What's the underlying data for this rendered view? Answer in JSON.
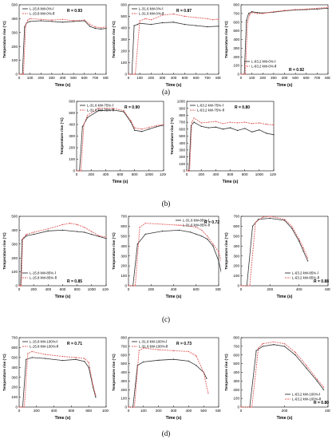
{
  "figure": {
    "rows": [
      {
        "label": "(a)"
      },
      {
        "label": "(b)"
      },
      {
        "label": "(c)"
      },
      {
        "label": "(d)"
      }
    ]
  },
  "chart_data": [
    {
      "type": "line",
      "xlabel": "Time (s)",
      "ylabel": "Temperature rise (°C)",
      "xlim": [
        0,
        800
      ],
      "ylim": [
        0,
        500
      ],
      "xticks": [
        0,
        100,
        200,
        300,
        400,
        500,
        600,
        700,
        800
      ],
      "yticks": [
        0,
        100,
        200,
        300,
        400,
        500
      ],
      "legend_position": "top-left",
      "r_label": "R = 0.93",
      "series": [
        {
          "name": "L-15.8 kW-0%-Ⅰ",
          "color": "#333333",
          "style": "solid",
          "x": [
            0,
            30,
            50,
            70,
            100,
            200,
            300,
            400,
            500,
            600,
            650,
            700,
            750,
            800
          ],
          "y": [
            0,
            0,
            340,
            370,
            380,
            385,
            380,
            375,
            380,
            385,
            345,
            330,
            325,
            330
          ]
        },
        {
          "name": "L-15.8 kW-0%-Ⅱ",
          "color": "#e06060",
          "style": "dashed",
          "x": [
            0,
            40,
            60,
            80,
            100,
            200,
            300,
            400,
            500,
            600,
            650,
            700,
            750,
            800
          ],
          "y": [
            0,
            0,
            350,
            390,
            400,
            395,
            390,
            395,
            385,
            390,
            360,
            340,
            335,
            340
          ]
        }
      ]
    },
    {
      "type": "line",
      "xlabel": "Time (s)",
      "ylabel": "Temperature rise (°C)",
      "xlim": [
        0,
        800
      ],
      "ylim": [
        0,
        600
      ],
      "xticks": [
        0,
        100,
        200,
        300,
        400,
        500,
        600,
        700,
        800
      ],
      "yticks": [
        0,
        100,
        200,
        300,
        400,
        500,
        600
      ],
      "legend_position": "top-left",
      "r_label": "R = 0.87",
      "series": [
        {
          "name": "L-31.6 kW-0%-Ⅰ",
          "color": "#333333",
          "style": "solid",
          "x": [
            0,
            30,
            50,
            80,
            100,
            200,
            300,
            400,
            500,
            600,
            700,
            800
          ],
          "y": [
            0,
            0,
            420,
            430,
            440,
            430,
            445,
            450,
            430,
            420,
            410,
            415
          ]
        },
        {
          "name": "L-31.6 kW-0%-Ⅱ",
          "color": "#e06060",
          "style": "dashed",
          "x": [
            0,
            60,
            100,
            150,
            200,
            300,
            400,
            500,
            600,
            700,
            750,
            800
          ],
          "y": [
            0,
            0,
            460,
            480,
            470,
            510,
            520,
            500,
            490,
            480,
            470,
            475
          ]
        }
      ]
    },
    {
      "type": "line",
      "xlabel": "Time (s)",
      "ylabel": "Temperature rise (°C)",
      "xlim": [
        0,
        800
      ],
      "ylim": [
        0,
        800
      ],
      "xticks": [
        0,
        100,
        200,
        300,
        400,
        500,
        600,
        700,
        800
      ],
      "yticks": [
        0,
        100,
        200,
        300,
        400,
        500,
        600,
        700,
        800
      ],
      "legend_position": "bottom-left",
      "r_label": "R = 0.92",
      "series": [
        {
          "name": "L-63.2 kW-0%-Ⅰ",
          "color": "#333333",
          "style": "solid",
          "x": [
            0,
            30,
            50,
            70,
            100,
            150,
            200,
            300,
            400,
            500,
            600,
            700,
            800
          ],
          "y": [
            0,
            0,
            620,
            700,
            720,
            710,
            705,
            715,
            730,
            740,
            745,
            750,
            760
          ]
        },
        {
          "name": "L-63.2 kW-0%-Ⅱ",
          "color": "#e06060",
          "style": "dashed",
          "x": [
            0,
            40,
            60,
            80,
            100,
            150,
            200,
            300,
            400,
            500,
            600,
            700,
            800
          ],
          "y": [
            0,
            0,
            600,
            690,
            710,
            700,
            700,
            720,
            735,
            745,
            750,
            760,
            770
          ]
        }
      ]
    },
    {
      "type": "line",
      "xlabel": "Time (s)",
      "ylabel": "Temperature rise (°C)",
      "xlim": [
        0,
        1200
      ],
      "ylim": [
        0,
        600
      ],
      "xticks": [
        0,
        200,
        400,
        600,
        800,
        1000,
        1200
      ],
      "yticks": [
        0,
        100,
        200,
        300,
        400,
        500,
        600
      ],
      "legend_position": "top-left",
      "r_label": "R = 0.90",
      "series": [
        {
          "name": "L-31.6 kW-75%-Ⅰ",
          "color": "#333333",
          "style": "solid",
          "x": [
            0,
            40,
            80,
            150,
            300,
            500,
            650,
            750,
            800,
            900,
            1000,
            1100,
            1200
          ],
          "y": [
            0,
            0,
            380,
            460,
            520,
            525,
            510,
            420,
            350,
            340,
            360,
            380,
            395
          ]
        },
        {
          "name": "L-31.6 kW-75%-Ⅱ",
          "color": "#e06060",
          "style": "dashed",
          "x": [
            0,
            60,
            100,
            150,
            300,
            500,
            650,
            750,
            800,
            900,
            1000,
            1100,
            1200
          ],
          "y": [
            0,
            0,
            400,
            480,
            540,
            540,
            520,
            430,
            370,
            360,
            375,
            390,
            400
          ]
        }
      ]
    },
    {
      "type": "line",
      "xlabel": "Time (s)",
      "ylabel": "Temperature rise (°C)",
      "xlim": [
        0,
        1200
      ],
      "ylim": [
        0,
        1000
      ],
      "xticks": [
        0,
        200,
        400,
        600,
        800,
        1000,
        1200
      ],
      "yticks": [
        0,
        100,
        200,
        300,
        400,
        500,
        600,
        700,
        800,
        900,
        1000
      ],
      "legend_position": "top-left",
      "r_label": "R = 0.80",
      "series": [
        {
          "name": "L-63.2 kW-75%-Ⅰ",
          "color": "#333333",
          "style": "solid",
          "x": [
            0,
            30,
            60,
            100,
            200,
            300,
            400,
            500,
            600,
            700,
            800,
            900,
            1000,
            1100,
            1200
          ],
          "y": [
            0,
            0,
            650,
            700,
            640,
            620,
            630,
            600,
            620,
            580,
            610,
            560,
            590,
            540,
            520
          ]
        },
        {
          "name": "L-63.2 kW-75%-Ⅱ",
          "color": "#e06060",
          "style": "dashed",
          "x": [
            0,
            40,
            70,
            100,
            200,
            300,
            400,
            500,
            600,
            700,
            800,
            900,
            1000,
            1100,
            1200
          ],
          "y": [
            0,
            0,
            700,
            760,
            690,
            700,
            710,
            680,
            700,
            690,
            700,
            680,
            690,
            670,
            660
          ]
        }
      ]
    },
    {
      "type": "line",
      "xlabel": "Time (s)",
      "ylabel": "Temperature rise (°C)",
      "xlim": [
        0,
        1200
      ],
      "ylim": [
        0,
        500
      ],
      "xticks": [
        0,
        200,
        400,
        600,
        800,
        1000,
        1200
      ],
      "yticks": [
        0,
        100,
        200,
        300,
        400,
        500
      ],
      "legend_position": "bottom-left",
      "r_label": "R = 0.85",
      "series": [
        {
          "name": "L-15.8 kW-85%-Ⅰ",
          "color": "#333333",
          "style": "solid",
          "x": [
            0,
            20,
            40,
            100,
            200,
            400,
            600,
            800,
            900,
            1000,
            1100,
            1200
          ],
          "y": [
            0,
            0,
            330,
            360,
            370,
            395,
            400,
            390,
            385,
            370,
            355,
            340
          ]
        },
        {
          "name": "L-15.8 kW-85%-Ⅱ",
          "color": "#e06060",
          "style": "dashed",
          "x": [
            0,
            30,
            50,
            100,
            200,
            400,
            600,
            700,
            800,
            900,
            1000,
            1100,
            1200
          ],
          "y": [
            0,
            0,
            340,
            370,
            385,
            410,
            440,
            450,
            440,
            420,
            390,
            360,
            350
          ]
        }
      ]
    },
    {
      "type": "line",
      "xlabel": "Time (s)",
      "ylabel": "Temperature rise (°C)",
      "xlim": [
        0,
        800
      ],
      "ylim": [
        0,
        700
      ],
      "xticks": [
        0,
        200,
        400,
        600,
        800
      ],
      "yticks": [
        0,
        100,
        200,
        300,
        400,
        500,
        600,
        700
      ],
      "legend_position": "top-right",
      "r_label": "R = 0.72",
      "series": [
        {
          "name": "L-31.6 kW-85%-Ⅰ",
          "color": "#333333",
          "style": "solid",
          "x": [
            0,
            40,
            80,
            150,
            300,
            450,
            550,
            600,
            650,
            700,
            750,
            800,
            830
          ],
          "y": [
            0,
            0,
            420,
            520,
            550,
            560,
            540,
            520,
            500,
            470,
            400,
            250,
            100
          ]
        },
        {
          "name": "L-31.6 kW-85%-Ⅱ",
          "color": "#e06060",
          "style": "dashed",
          "x": [
            0,
            60,
            100,
            150,
            300,
            450,
            550,
            600,
            650,
            700,
            750,
            800,
            830
          ],
          "y": [
            0,
            0,
            590,
            630,
            620,
            610,
            600,
            590,
            560,
            500,
            420,
            340,
            220
          ]
        }
      ]
    },
    {
      "type": "line",
      "xlabel": "Time (s)",
      "ylabel": "Temperature rise (°C)",
      "xlim": [
        0,
        600
      ],
      "ylim": [
        0,
        700
      ],
      "xticks": [
        0,
        200,
        400,
        600
      ],
      "yticks": [
        0,
        100,
        200,
        300,
        400,
        500,
        600,
        700
      ],
      "legend_position": "bottom-right",
      "r_label": "R = 0.88",
      "series": [
        {
          "name": "L-63.2 kW-85%-Ⅰ",
          "color": "#333333",
          "style": "solid",
          "x": [
            0,
            40,
            80,
            120,
            200,
            300,
            350,
            400,
            430,
            460
          ],
          "y": [
            0,
            0,
            600,
            670,
            680,
            660,
            580,
            450,
            350,
            250
          ]
        },
        {
          "name": "L-63.2 kW-85%-Ⅱ",
          "color": "#e06060",
          "style": "dashed",
          "x": [
            0,
            60,
            100,
            150,
            200,
            300,
            350,
            400,
            430,
            460
          ],
          "y": [
            0,
            0,
            640,
            690,
            700,
            670,
            600,
            470,
            380,
            280
          ]
        }
      ]
    },
    {
      "type": "line",
      "xlabel": "Time (s)",
      "ylabel": "Temperature rise (°C)",
      "xlim": [
        0,
        1000
      ],
      "ylim": [
        0,
        700
      ],
      "xticks": [
        0,
        200,
        400,
        600,
        800,
        1000
      ],
      "yticks": [
        0,
        100,
        200,
        300,
        400,
        500,
        600,
        700
      ],
      "legend_position": "top-left",
      "r_label": "R = 0.71",
      "series": [
        {
          "name": "L-15.8 kW-100%-Ⅰ",
          "color": "#333333",
          "style": "solid",
          "x": [
            0,
            40,
            80,
            150,
            300,
            500,
            650,
            750,
            800,
            850,
            880
          ],
          "y": [
            0,
            0,
            480,
            500,
            490,
            470,
            480,
            460,
            400,
            200,
            100
          ]
        },
        {
          "name": "L-15.8 kW-100%-Ⅱ",
          "color": "#e06060",
          "style": "dashed",
          "x": [
            0,
            60,
            100,
            150,
            300,
            500,
            650,
            750,
            800,
            850,
            880
          ],
          "y": [
            0,
            0,
            540,
            560,
            530,
            510,
            500,
            490,
            450,
            220,
            120
          ]
        }
      ]
    },
    {
      "type": "line",
      "xlabel": "Time (s)",
      "ylabel": "Temperature rise (°C)",
      "xlim": [
        0,
        600
      ],
      "ylim": [
        0,
        800
      ],
      "xticks": [
        0,
        100,
        200,
        300,
        400,
        500,
        600
      ],
      "yticks": [
        0,
        100,
        200,
        300,
        400,
        500,
        600,
        700,
        800
      ],
      "legend_position": "top-left",
      "r_label": "R = 0.73",
      "series": [
        {
          "name": "L-31.6 kW-100%-Ⅰ",
          "color": "#333333",
          "style": "solid",
          "x": [
            0,
            30,
            60,
            100,
            200,
            300,
            400,
            450,
            500,
            520
          ],
          "y": [
            0,
            0,
            480,
            520,
            540,
            550,
            530,
            480,
            400,
            330
          ]
        },
        {
          "name": "L-31.6 kW-100%-Ⅱ",
          "color": "#e06060",
          "style": "dashed",
          "x": [
            0,
            40,
            70,
            100,
            200,
            300,
            400,
            450,
            500,
            530
          ],
          "y": [
            0,
            0,
            650,
            680,
            660,
            650,
            640,
            590,
            400,
            160
          ]
        }
      ]
    },
    {
      "type": "line",
      "xlabel": "Time (s)",
      "ylabel": "Temperature rise (°C)",
      "xlim": [
        0,
        400
      ],
      "ylim": [
        0,
        800
      ],
      "xticks": [
        0,
        200,
        400
      ],
      "yticks": [
        0,
        100,
        200,
        300,
        400,
        500,
        600,
        700,
        800
      ],
      "legend_position": "bottom-right",
      "r_label": "R = 0.80",
      "series": [
        {
          "name": "L-63.2 kW-100%-Ⅰ",
          "color": "#333333",
          "style": "solid",
          "x": [
            0,
            40,
            70,
            100,
            150,
            200,
            250,
            300,
            350,
            380
          ],
          "y": [
            0,
            0,
            650,
            700,
            720,
            700,
            600,
            450,
            300,
            200
          ]
        },
        {
          "name": "L-63.2 kW-100%-Ⅱ",
          "color": "#e06060",
          "style": "dashed",
          "x": [
            0,
            50,
            80,
            100,
            150,
            200,
            250,
            300,
            350,
            380
          ],
          "y": [
            0,
            0,
            680,
            730,
            750,
            730,
            630,
            480,
            320,
            230
          ]
        }
      ]
    }
  ]
}
